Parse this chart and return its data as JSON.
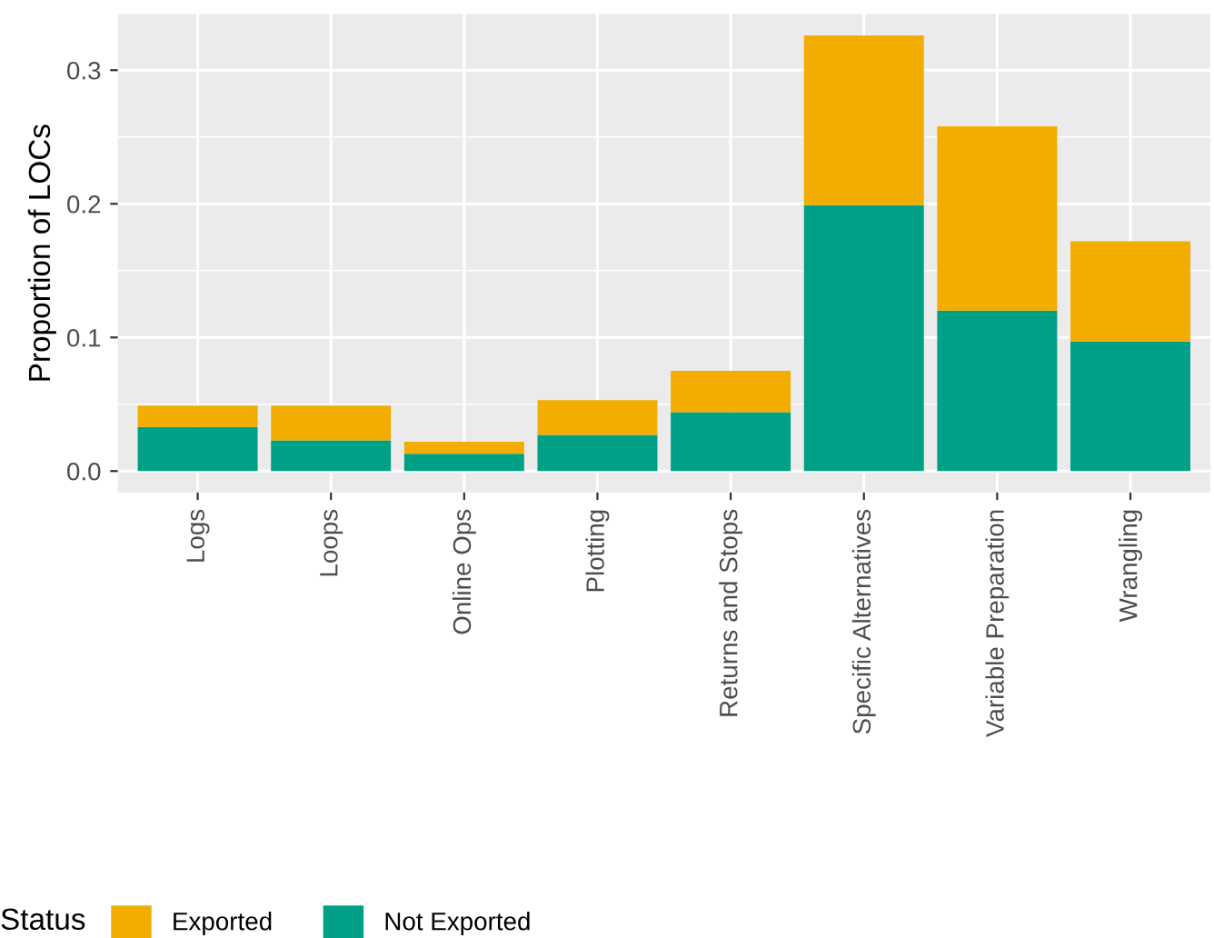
{
  "chart_data": {
    "type": "bar",
    "stacked": true,
    "ylabel": "Proportion of LOCs",
    "legend_title": "Status",
    "legend": "bottom",
    "grid": true,
    "categories": [
      "Logs",
      "Loops",
      "Online Ops",
      "Plotting",
      "Returns and Stops",
      "Specific Alternatives",
      "Variable Preparation",
      "Wrangling"
    ],
    "series": [
      {
        "name": "Not Exported",
        "color": "#00a087",
        "values": [
          0.033,
          0.023,
          0.013,
          0.027,
          0.044,
          0.199,
          0.12,
          0.097
        ]
      },
      {
        "name": "Exported",
        "color": "#f2ad00",
        "values": [
          0.016,
          0.026,
          0.009,
          0.026,
          0.031,
          0.127,
          0.138,
          0.075
        ]
      }
    ],
    "ylim": [
      -0.016,
      0.342
    ],
    "yticks": [
      {
        "value": 0,
        "label": "0.0"
      },
      0.1,
      0.2,
      0.3
    ]
  }
}
